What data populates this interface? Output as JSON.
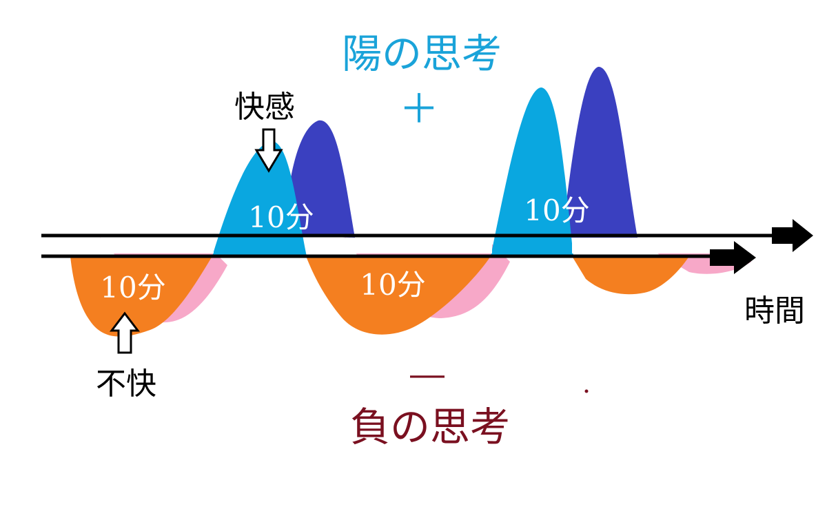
{
  "title_positive": "陽の思考",
  "sign_positive": "＋",
  "title_negative": "負の思考",
  "sign_negative": "―",
  "label_pleasure": "快感",
  "label_displeasure": "不快",
  "label_time": "時間",
  "duration_labels": [
    "10分",
    "10分",
    "10分",
    "10分"
  ],
  "colors": {
    "positive_text": "#1aa3d9",
    "negative_text": "#7a1020",
    "sky_wave": "#0aa7e0",
    "navy_wave": "#3a40c0",
    "orange_wave": "#f47f20",
    "pink_wave": "#f7a8c8",
    "axis": "#000000"
  }
}
